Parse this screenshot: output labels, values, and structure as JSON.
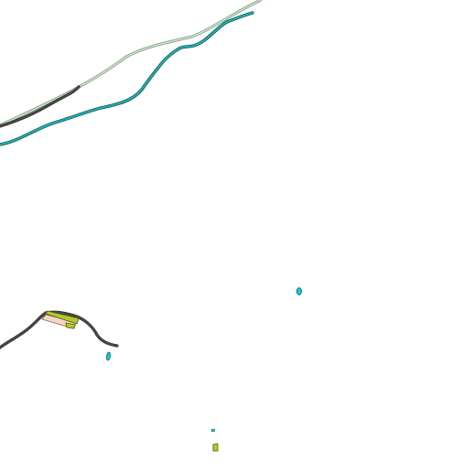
{
  "map": {
    "background": "#ffffff",
    "colors": {
      "rail_outer": "#7a9a7a",
      "rail_inner": "#cfe3cf",
      "river_outer": "#1f3f3f",
      "river_inner": "#19b6b6",
      "road_dark": "#4a4a4a",
      "road_dark_edge": "#222222",
      "pond_fill": "#18c8d0",
      "pond_edge": "#0e6f73",
      "patch_green": "#b8c82a",
      "patch_green_edge": "#4b5a10",
      "patch_peach": "#f3d6c3",
      "patch_peach_edge": "#8a6a5a"
    },
    "features": [
      {
        "id": "rail-line",
        "kind": "railway"
      },
      {
        "id": "river-north",
        "kind": "river"
      },
      {
        "id": "road-north-segment",
        "kind": "road"
      },
      {
        "id": "road-south",
        "kind": "road"
      },
      {
        "id": "lot-peach",
        "kind": "landuse"
      },
      {
        "id": "lot-green",
        "kind": "landuse"
      },
      {
        "id": "lot-green-small",
        "kind": "landuse"
      },
      {
        "id": "pond-east",
        "kind": "pond"
      },
      {
        "id": "pond-west",
        "kind": "pond"
      },
      {
        "id": "pond-south-small",
        "kind": "pond"
      },
      {
        "id": "patch-south-green",
        "kind": "landuse"
      }
    ]
  }
}
